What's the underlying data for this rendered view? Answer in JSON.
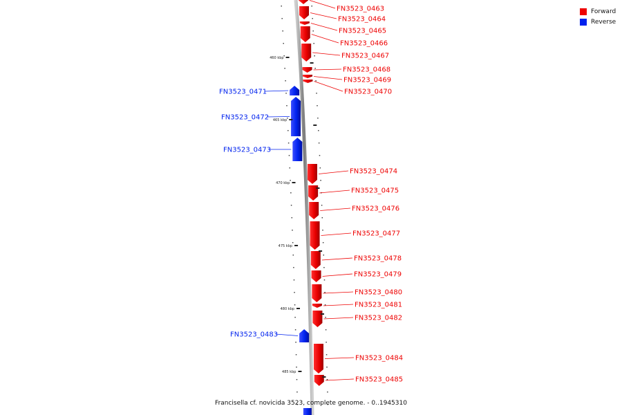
{
  "legend": {
    "forward_label": "Forward",
    "reverse_label": "Reverse",
    "forward_color": "#ee0000",
    "reverse_color": "#0022ee"
  },
  "footer": "Francisella cf. novicida 3523, complete genome. - 0..1945310",
  "colors": {
    "forward": "#ee0000",
    "forward_dark": "#b30000",
    "reverse": "#0022ee",
    "reverse_dark": "#0010a0",
    "backbone": "#8a8a8a"
  },
  "scale_labels": [
    "460 kbp",
    "465 kbp",
    "470 kbp",
    "475 kbp",
    "480 kbp",
    "485 kbp"
  ],
  "genes": [
    {
      "id": "FN3523_0463",
      "strand": "forward"
    },
    {
      "id": "FN3523_0464",
      "strand": "forward"
    },
    {
      "id": "FN3523_0465",
      "strand": "forward"
    },
    {
      "id": "FN3523_0466",
      "strand": "forward"
    },
    {
      "id": "FN3523_0467",
      "strand": "forward"
    },
    {
      "id": "FN3523_0468",
      "strand": "forward"
    },
    {
      "id": "FN3523_0469",
      "strand": "forward"
    },
    {
      "id": "FN3523_0470",
      "strand": "forward"
    },
    {
      "id": "FN3523_0471",
      "strand": "reverse"
    },
    {
      "id": "FN3523_0472",
      "strand": "reverse"
    },
    {
      "id": "FN3523_0473",
      "strand": "reverse"
    },
    {
      "id": "FN3523_0474",
      "strand": "forward"
    },
    {
      "id": "FN3523_0475",
      "strand": "forward"
    },
    {
      "id": "FN3523_0476",
      "strand": "forward"
    },
    {
      "id": "FN3523_0477",
      "strand": "forward"
    },
    {
      "id": "FN3523_0478",
      "strand": "forward"
    },
    {
      "id": "FN3523_0479",
      "strand": "forward"
    },
    {
      "id": "FN3523_0480",
      "strand": "forward"
    },
    {
      "id": "FN3523_0481",
      "strand": "forward"
    },
    {
      "id": "FN3523_0482",
      "strand": "forward"
    },
    {
      "id": "FN3523_0483",
      "strand": "reverse"
    },
    {
      "id": "FN3523_0484",
      "strand": "forward"
    },
    {
      "id": "FN3523_0485",
      "strand": "forward"
    }
  ]
}
